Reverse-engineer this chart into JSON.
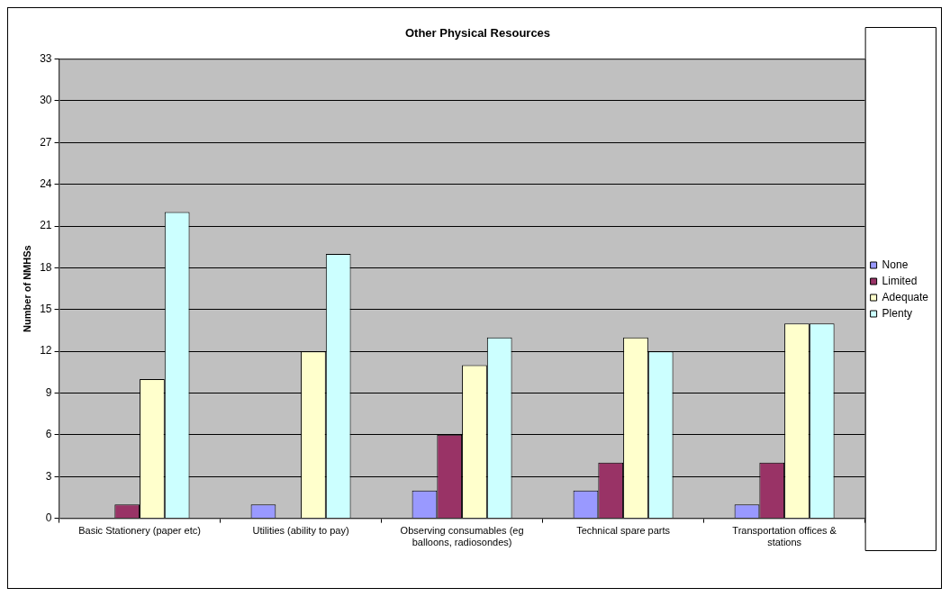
{
  "chart_data": {
    "type": "bar",
    "title": "Other Physical Resources",
    "ylabel": "Number of NMHSs",
    "categories": [
      "Basic Stationery (paper etc)",
      "Utilities (ability to pay)",
      "Observing consumables (eg balloons, radiosondes)",
      "Technical spare parts",
      "Transportation offices & stations"
    ],
    "series": [
      {
        "name": "None",
        "color": "#9999ff",
        "values": [
          0,
          1,
          2,
          2,
          1
        ]
      },
      {
        "name": "Limited",
        "color": "#993366",
        "values": [
          1,
          0,
          6,
          4,
          4
        ]
      },
      {
        "name": "Adequate",
        "color": "#ffffcc",
        "values": [
          10,
          12,
          11,
          13,
          14
        ]
      },
      {
        "name": "Plenty",
        "color": "#ccffff",
        "values": [
          22,
          19,
          13,
          12,
          14
        ]
      }
    ],
    "ylim": [
      0,
      33
    ],
    "yticks": [
      0,
      3,
      6,
      9,
      12,
      15,
      18,
      21,
      24,
      27,
      30,
      33
    ],
    "grid": "y",
    "legend": "right"
  }
}
